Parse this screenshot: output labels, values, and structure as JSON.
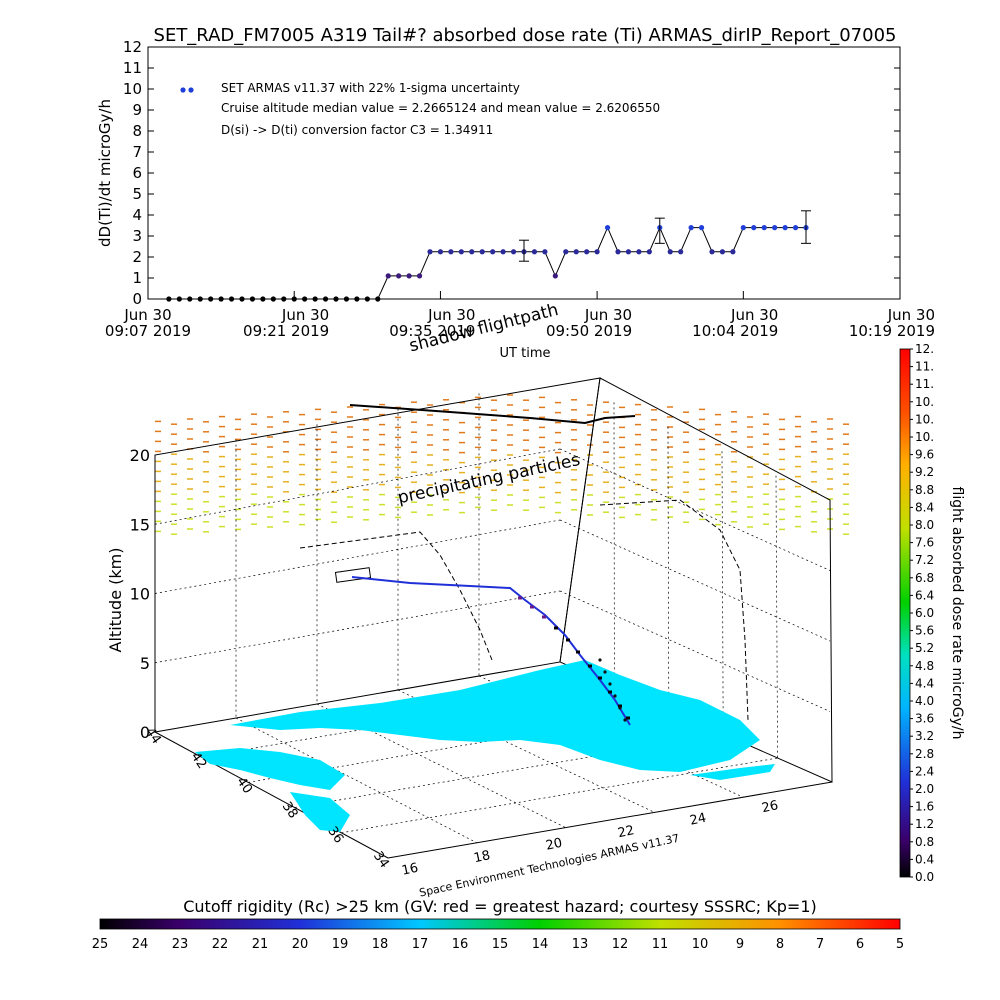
{
  "page_title": "SET_RAD_FM7005   A319 Tail#? absorbed dose rate (Ti) ARMAS_dirIP_Report_07005",
  "chart_data": [
    {
      "type": "scatter",
      "title": "SET_RAD_FM7005   A319 Tail#? absorbed dose rate (Ti) ARMAS_dirIP_Report_07005",
      "xlabel": "UT time",
      "ylabel": "dD(Ti)/dt microGy/h",
      "ylim": [
        0,
        12
      ],
      "y_ticks": [
        "0",
        "1",
        "2",
        "3",
        "4",
        "5",
        "6",
        "7",
        "8",
        "9",
        "10",
        "11",
        "12"
      ],
      "x_ticks": [
        {
          "line1": "Jun 30",
          "line2": "09:07 2019"
        },
        {
          "line1": "Jun 30",
          "line2": "09:21 2019"
        },
        {
          "line1": "Jun 30",
          "line2": "09:35 2019"
        },
        {
          "line1": "Jun 30",
          "line2": "09:50 2019"
        },
        {
          "line1": "Jun 30",
          "line2": "10:04 2019"
        },
        {
          "line1": "Jun 30",
          "line2": "10:19 2019"
        }
      ],
      "x_tick_minutes": [
        0,
        14,
        28,
        43,
        57,
        72
      ],
      "legend": [
        "SET ARMAS v11.37 with 22% 1-sigma uncertainty",
        "Cruise altitude median value = 2.2665124 and mean value = 2.6206550",
        "D(si) -> D(ti) conversion factor C3 = 1.34911"
      ],
      "legend_position": "top-left",
      "series": [
        {
          "x_minutes": [
            2,
            3,
            4,
            5,
            6,
            7,
            8,
            9,
            10,
            11,
            12,
            13,
            14,
            15,
            16,
            17,
            18,
            19,
            20,
            21,
            22,
            23,
            24,
            25,
            26,
            27,
            28,
            29,
            30,
            31,
            32,
            33,
            34,
            35,
            36,
            37,
            38,
            39,
            40,
            41,
            42,
            43,
            44,
            45,
            46,
            47,
            48,
            49,
            50,
            51,
            52,
            53,
            54,
            55,
            56,
            57,
            58,
            59,
            60,
            61,
            62,
            63
          ],
          "values": [
            0,
            0,
            0,
            0,
            0,
            0,
            0,
            0,
            0,
            0,
            0,
            0,
            0,
            0,
            0,
            0,
            0,
            0,
            0,
            0,
            0,
            1.1,
            1.1,
            1.1,
            1.1,
            2.25,
            2.25,
            2.25,
            2.25,
            2.25,
            2.25,
            2.25,
            2.25,
            2.25,
            2.25,
            2.25,
            2.25,
            1.1,
            2.25,
            2.25,
            2.25,
            2.25,
            3.4,
            2.25,
            2.25,
            2.25,
            2.25,
            3.4,
            2.25,
            2.25,
            3.4,
            3.4,
            2.25,
            2.25,
            2.25,
            3.4,
            3.4,
            3.4,
            3.4,
            3.4,
            3.4,
            3.4
          ]
        }
      ],
      "error_bars": [
        {
          "x_minute": 36,
          "low": 1.8,
          "high": 2.8
        },
        {
          "x_minute": 49,
          "low": 2.65,
          "high": 3.85
        },
        {
          "x_minute": 63,
          "low": 2.65,
          "high": 4.2
        }
      ]
    },
    {
      "type": "3d-trajectory",
      "zlabel": "Altitude (km)",
      "z_ticks": [
        "0",
        "5",
        "10",
        "15",
        "20"
      ],
      "lat_ticks": [
        "44",
        "42",
        "40",
        "38",
        "36",
        "34"
      ],
      "lon_ticks": [
        "16",
        "18",
        "20",
        "22",
        "24",
        "26"
      ],
      "annotations": [
        "shadow flightpath",
        "precipitating particles"
      ],
      "credit": "Space Environment Technologies ARMAS v11.37"
    }
  ],
  "dose_colorbar": {
    "label": "flight absorbed dose rate microGy/h",
    "ticks": [
      "0.0",
      "0.4",
      "0.8",
      "1.2",
      "1.6",
      "2.0",
      "2.4",
      "2.8",
      "3.2",
      "3.6",
      "4.0",
      "4.4",
      "4.8",
      "5.2",
      "5.6",
      "6.0",
      "6.4",
      "6.8",
      "7.2",
      "7.6",
      "8.0",
      "8.4",
      "8.8",
      "9.2",
      "9.6",
      "10.",
      "10.",
      "10.",
      "11.",
      "11.",
      "12."
    ]
  },
  "rigidity_colorbar": {
    "label": "Cutoff rigidity (Rc) >25 km (GV: red = greatest hazard; courtesy SSSRC; Kp=1)",
    "ticks": [
      "25",
      "24",
      "23",
      "22",
      "21",
      "20",
      "19",
      "18",
      "17",
      "16",
      "15",
      "14",
      "13",
      "12",
      "11",
      "10",
      "9",
      "8",
      "7",
      "6",
      "5"
    ]
  },
  "colors": {
    "dose_points": "#1f3fd8",
    "ground_dots": "#101010",
    "land": "#00e5ff",
    "mid_points": "#3a1a7a"
  }
}
